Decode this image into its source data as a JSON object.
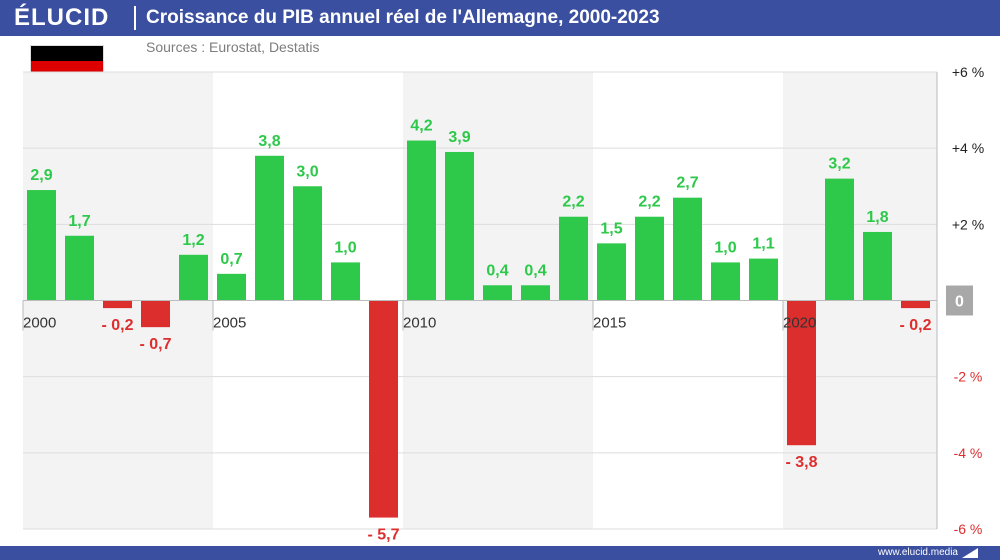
{
  "header": {
    "brand": "ÉLUCID",
    "title": "Croissance du PIB annuel réel de l'Allemagne, 2000-2023",
    "sources": "Sources : Eurostat, Destatis"
  },
  "footer": {
    "site": "www.elucid.media"
  },
  "flag": {
    "name": "germany-flag",
    "colors": [
      "#000000",
      "#dd0000",
      "#ffce00"
    ]
  },
  "colors": {
    "brand": "#3a4fa0",
    "positive": "#2ec84a",
    "negative": "#dd2e2e",
    "zero_badge": "#a8a8a8",
    "band": "#f3f3f3"
  },
  "chart_data": {
    "type": "bar",
    "title": "Croissance du PIB annuel réel de l'Allemagne, 2000-2023",
    "x": [
      2000,
      2001,
      2002,
      2003,
      2004,
      2005,
      2006,
      2007,
      2008,
      2009,
      2010,
      2011,
      2012,
      2013,
      2014,
      2015,
      2016,
      2017,
      2018,
      2019,
      2020,
      2021,
      2022,
      2023
    ],
    "values": [
      2.9,
      1.7,
      -0.2,
      -0.7,
      1.2,
      0.7,
      3.8,
      3.0,
      1.0,
      -5.7,
      4.2,
      3.9,
      0.4,
      0.4,
      2.2,
      1.5,
      2.2,
      2.7,
      1.0,
      1.1,
      -3.8,
      3.2,
      1.8,
      -0.2
    ],
    "data_labels": [
      "2,9",
      "1,7",
      "- 0,2",
      "- 0,7",
      "1,2",
      "0,7",
      "3,8",
      "3,0",
      "1,0",
      "- 5,7",
      "4,2",
      "3,9",
      "0,4",
      "0,4",
      "2,2",
      "1,5",
      "2,2",
      "2,7",
      "1,0",
      "1,1",
      "- 3,8",
      "3,2",
      "1,8",
      "- 0,2"
    ],
    "x_tick_labels": [
      {
        "year": 2000,
        "label": "2000"
      },
      {
        "year": 2005,
        "label": "2005"
      },
      {
        "year": 2010,
        "label": "2010"
      },
      {
        "year": 2015,
        "label": "2015"
      },
      {
        "year": 2020,
        "label": "2020"
      }
    ],
    "y_ticks": [
      {
        "value": 6,
        "label": "+6 %"
      },
      {
        "value": 4,
        "label": "+4 %"
      },
      {
        "value": 2,
        "label": "+2 %"
      },
      {
        "value": 0,
        "label": "0"
      },
      {
        "value": -2,
        "label": "-2 %"
      },
      {
        "value": -4,
        "label": "-4 %"
      },
      {
        "value": -6,
        "label": "-6 %"
      }
    ],
    "ylim": [
      -6,
      6
    ],
    "xlabel": "",
    "ylabel": "",
    "grid": true,
    "shaded_periods": [
      [
        2000,
        2004
      ],
      [
        2010,
        2014
      ],
      [
        2020,
        2023
      ]
    ]
  }
}
